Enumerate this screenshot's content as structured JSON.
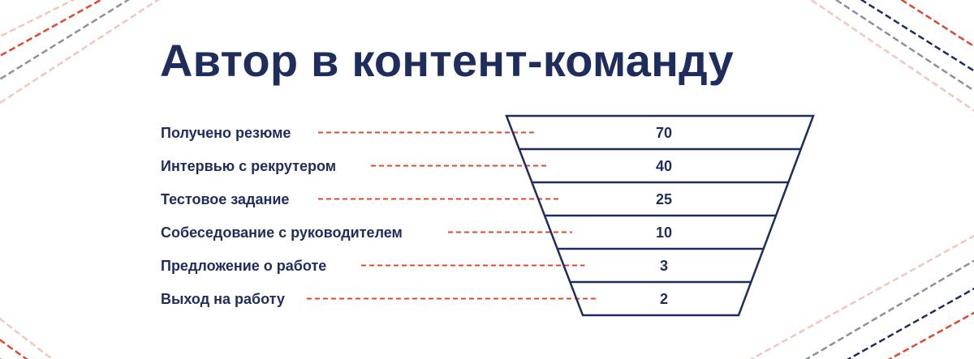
{
  "title": "Автор в контент-команду",
  "colors": {
    "navy": "#1f2d5c",
    "accent": "#e0492f",
    "gray": "#8d8fa3",
    "pink": "#f3c6bd"
  },
  "chart_data": {
    "type": "funnel",
    "stages": [
      {
        "label": "Получено резюме",
        "value": "70"
      },
      {
        "label": "Интервью с рекрутером",
        "value": "40"
      },
      {
        "label": "Тестовое задание",
        "value": "25"
      },
      {
        "label": "Собеседование с руководителем",
        "value": "10"
      },
      {
        "label": "Предложение о работе",
        "value": "3"
      },
      {
        "label": "Выход на работу",
        "value": "2"
      }
    ]
  }
}
